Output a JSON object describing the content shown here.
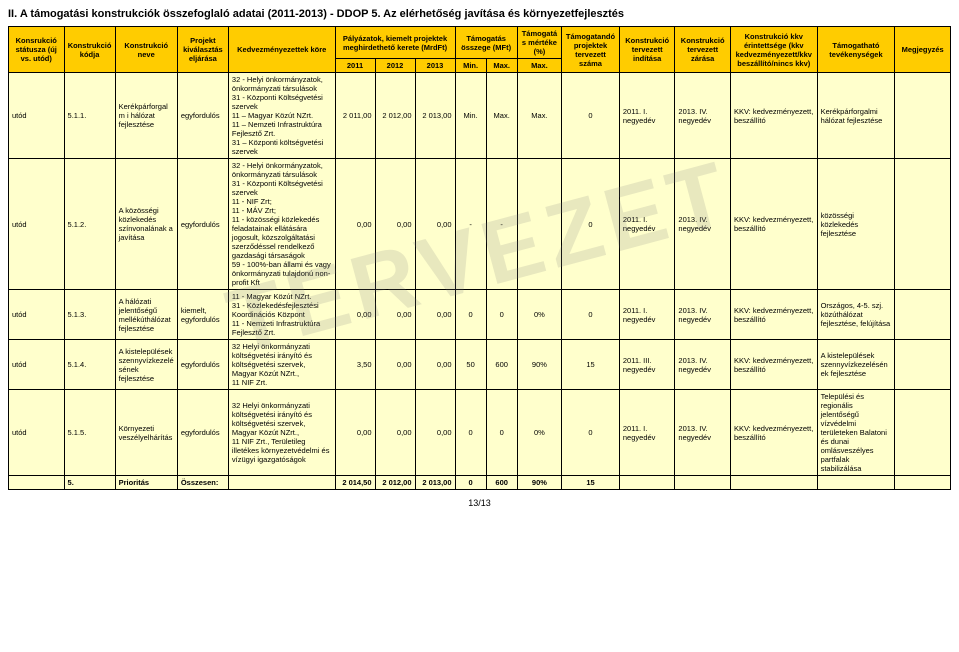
{
  "title": "II. A támogatási konstrukciók összefoglaló adatai (2011-2013) - DDOP 5. Az elérhetőség javítása és környezetfejlesztés",
  "watermark": "TERVEZET",
  "page_number": "13/13",
  "header": {
    "h1": "Konsrukció státusza (új vs. utód)",
    "h2": "Konstrukció kódja",
    "h3": "Konstrukció neve",
    "h4": "Projekt kiválasztás eljárása",
    "h5": "Kedvezményezettek köre",
    "h6": "Pályázatok, kiemelt projektek meghirdethető kerete (MrdFt)",
    "h6a": "2011",
    "h6b": "2012",
    "h6c": "2013",
    "h7": "Támogatás összege (MFt)",
    "h7a": "Min.",
    "h7b": "Max.",
    "h8": "Támogatás mértéke (%)",
    "h8a": "Max.",
    "h9": "Támogatandó projektek tervezett száma",
    "h10": "Konstrukció tervezett indítása",
    "h11": "Konstrukció tervezett zárása",
    "h12": "Konstrukció kkv érintettsége (kkv kedvezményezett/kkv beszállító/nincs kkv)",
    "h13": "Támogatható tevékenységek",
    "h14": "Megjegyzés"
  },
  "rows": [
    {
      "status": "utód",
      "code": "5.1.1.",
      "name": "Kerékpárforgalm i hálózat fejlesztése",
      "proc": "egyfordulós",
      "benef": "32 - Helyi önkormányzatok, önkormányzati társulások\n31 - Központi Költségvetési szervek\n11 – Magyar Közút NZrt.\n11 – Nemzeti Infrastruktúra Fejlesztő Zrt.\n31 – Központi költségvetési szervek",
      "y2011": "2 011,00",
      "y2012": "2 012,00",
      "y2013": "2 013,00",
      "min": "Min.",
      "max": "Max.",
      "pctmax": "Max.",
      "count": "0",
      "start": "2011. I. negyedév",
      "end": "2013. IV. negyedév",
      "kkv": "KKV: kedvezményezett, beszállító",
      "activ": "Kerékpárforgalmi hálózat fejlesztése",
      "note": ""
    },
    {
      "status": "utód",
      "code": "5.1.2.",
      "name": "A közösségi közlekedés színvonalának a javítása",
      "proc": "egyfordulós",
      "benef": "32 - Helyi önkormányzatok, önkormányzati társulások\n31 - Központi Költségvetési szervek\n11 - NIF Zrt;\n11 - MÁV Zrt;\n11 - közösségi közlekedés feladatainak ellátására jogosult, közszolgáltatási szerződéssel rendelkező gazdasági társaságok\n59 - 100%-ban állami és vagy önkormányzati tulajdonú non-profit Kft",
      "y2011": "0,00",
      "y2012": "0,00",
      "y2013": "0,00",
      "min": "-",
      "max": "-",
      "pctmax": "",
      "count": "0",
      "start": "2011. I. negyedév",
      "end": "2013. IV. negyedév",
      "kkv": "KKV: kedvezményezett, beszállító",
      "activ": "közösségi közlekedés fejlesztése",
      "note": ""
    },
    {
      "status": "utód",
      "code": "5.1.3.",
      "name": "A hálózati jelentőségű mellékúthálózat fejlesztése",
      "proc": "kiemelt, egyfordulós",
      "benef": "11 - Magyar Közút NZrt.\n31 - Közlekedésfejlesztési Koordinációs Központ\n11 - Nemzeti Infrastruktúra Fejlesztő Zrt.",
      "y2011": "0,00",
      "y2012": "0,00",
      "y2013": "0,00",
      "min": "0",
      "max": "0",
      "pctmax": "0%",
      "count": "0",
      "start": "2011. I. negyedév",
      "end": "2013. IV. negyedév",
      "kkv": "KKV: kedvezményezett, beszállító",
      "activ": "Országos, 4-5. szj. közúthálózat fejlesztése, felújítása",
      "note": ""
    },
    {
      "status": "utód",
      "code": "5.1.4.",
      "name": "A kistelepülések szennyvízkezelé sének fejlesztése",
      "proc": "egyfordulós",
      "benef": "32 Helyi önkormányzati költségvetési irányító és költségvetési szervek, Magyar Közút NZrt.,\n11 NIF Zrt.",
      "y2011": "3,50",
      "y2012": "0,00",
      "y2013": "0,00",
      "min": "50",
      "max": "600",
      "pctmax": "90%",
      "count": "15",
      "start": "2011. III. negyedév",
      "end": "2013. IV. negyedév",
      "kkv": "KKV: kedvezményezett, beszállító",
      "activ": "A kistelepülések szennyvízkezelésén ek fejlesztése",
      "note": ""
    },
    {
      "status": "utód",
      "code": "5.1.5.",
      "name": "Környezeti veszélyelhárítás",
      "proc": "egyfordulós",
      "benef": "32 Helyi önkormányzati költségvetési irányító és költségvetési szervek, Magyar Közút NZrt.,\n11 NIF Zrt., Területileg illetékes környezetvédelmi és vízügyi igazgatóságok",
      "y2011": "0,00",
      "y2012": "0,00",
      "y2013": "0,00",
      "min": "0",
      "max": "0",
      "pctmax": "0%",
      "count": "0",
      "start": "2011. I. negyedév",
      "end": "2013. IV. negyedév",
      "kkv": "KKV: kedvezményezett, beszállító",
      "activ": "Települési és regionális jelentőségű vízvédelmi területeken Balatoni és dunai omlásveszélyes partfalak stabilizálása",
      "note": ""
    }
  ],
  "totals": {
    "label_code": "5.",
    "label_name": "Prioritás",
    "label_proc": "Összesen:",
    "y2011": "2 014,50",
    "y2012": "2 012,00",
    "y2013": "2 013,00",
    "min": "0",
    "max": "600",
    "pctmax": "90%",
    "count": "15"
  },
  "col_widths": {
    "c1": 50,
    "c2": 46,
    "c3": 56,
    "c4": 46,
    "c5": 96,
    "c6a": 36,
    "c6b": 36,
    "c6c": 36,
    "c7a": 28,
    "c7b": 28,
    "c8": 40,
    "c9": 52,
    "c10": 50,
    "c11": 50,
    "c12": 78,
    "c13": 70,
    "c14": 50
  },
  "colors": {
    "header_bg": "#ffcc00",
    "body_bg": "#ffffcc",
    "border": "#000000",
    "watermark": "rgba(128,128,128,0.18)"
  }
}
